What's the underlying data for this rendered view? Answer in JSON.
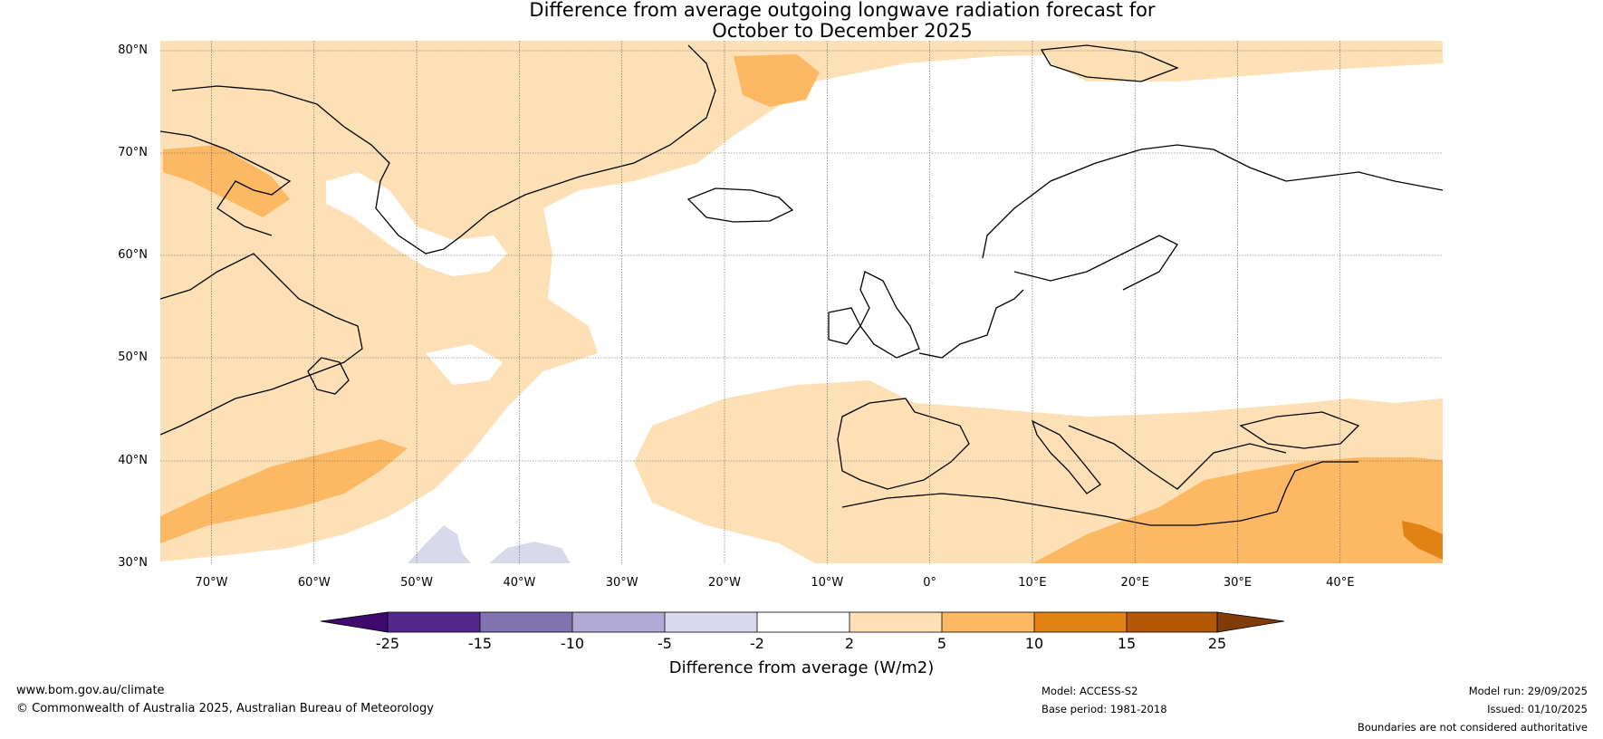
{
  "title": {
    "line1": "Difference from average outgoing longwave radiation forecast for",
    "line2": "October to December 2025"
  },
  "map": {
    "latitude_labels": [
      "80°N",
      "70°N",
      "60°N",
      "50°N",
      "40°N",
      "30°N"
    ],
    "longitude_labels": [
      "70°W",
      "60°W",
      "50°W",
      "40°W",
      "30°W",
      "20°W",
      "10°W",
      "0°",
      "10°E",
      "20°E",
      "30°E",
      "40°E"
    ],
    "lat_range": [
      30,
      81
    ],
    "lon_range": [
      -75.5,
      50
    ]
  },
  "colorbar": {
    "title": "Difference from average (W/m2)",
    "ticks": [
      "-25",
      "-15",
      "-10",
      "-5",
      "-2",
      "2",
      "5",
      "10",
      "15",
      "25"
    ],
    "colors": [
      "#3f0a6e",
      "#54278f",
      "#8073b0",
      "#b1aad4",
      "#d9d9ec",
      "#ffffff",
      "#fde0b6",
      "#fdb863",
      "#e08214",
      "#b35806",
      "#7f3b08"
    ]
  },
  "footer": {
    "url": "www.bom.gov.au/climate",
    "copyright": "© Commonwealth of Australia 2025, Australian Bureau of Meteorology",
    "model": "Model: ACCESS-S2",
    "base_period": "Base period: 1981-2018",
    "model_run": "Model run: 29/09/2025",
    "issued": "Issued: 01/10/2025",
    "disclaimer": "Boundaries are not considered authoritative"
  }
}
